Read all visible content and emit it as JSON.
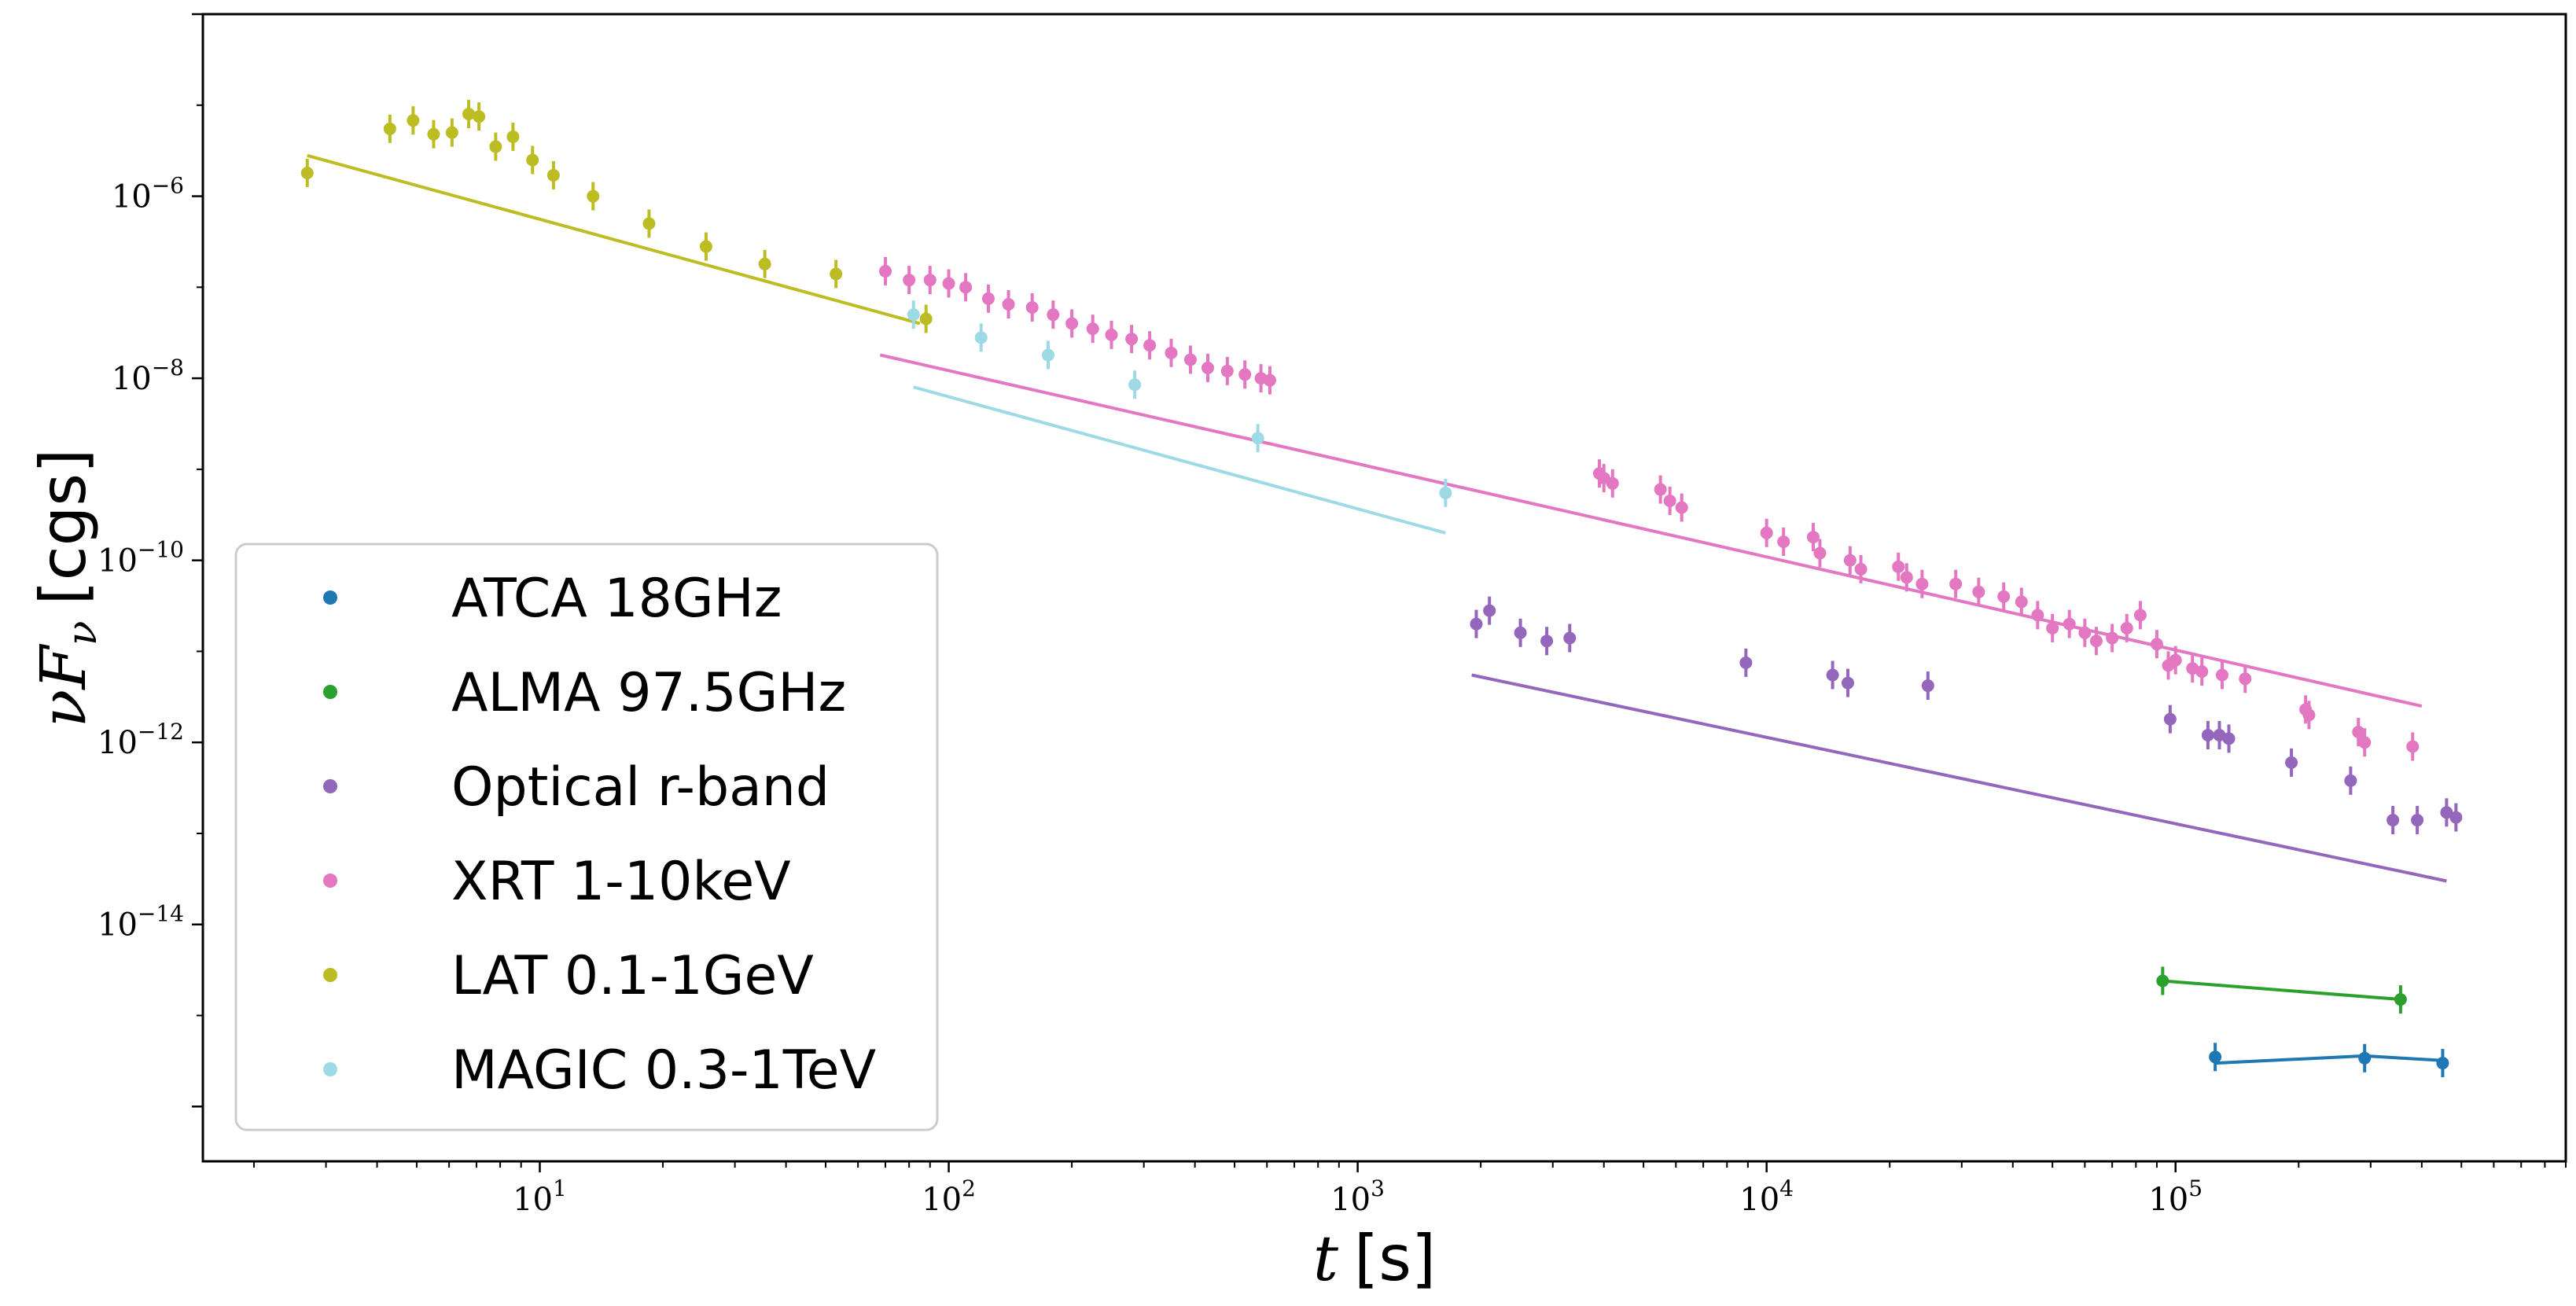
{
  "chart_data": {
    "type": "scatter",
    "title": "",
    "xlabel": "t [s]",
    "xlabel_var": "t",
    "xlabel_unit": "[s]",
    "ylabel": "νFν [cgs]",
    "ylabel_var": "νF",
    "ylabel_sub": "ν",
    "ylabel_unit": "[cgs]",
    "xscale": "log",
    "yscale": "log",
    "xlim": [
      1.5,
      900000
    ],
    "ylim": [
      2.5e-17,
      0.0001
    ],
    "grid": false,
    "legend_position": "lower-left",
    "x_ticks": [
      {
        "value": 10,
        "base": "10",
        "exp": "1"
      },
      {
        "value": 100,
        "base": "10",
        "exp": "2"
      },
      {
        "value": 1000,
        "base": "10",
        "exp": "3"
      },
      {
        "value": 10000,
        "base": "10",
        "exp": "4"
      },
      {
        "value": 100000,
        "base": "10",
        "exp": "5"
      }
    ],
    "y_ticks": [
      {
        "value": 1e-06,
        "base": "10",
        "exp": "−6"
      },
      {
        "value": 1e-08,
        "base": "10",
        "exp": "−8"
      },
      {
        "value": 1e-10,
        "base": "10",
        "exp": "−10"
      },
      {
        "value": 1e-12,
        "base": "10",
        "exp": "−12"
      },
      {
        "value": 1e-14,
        "base": "10",
        "exp": "−14"
      }
    ],
    "series": [
      {
        "name": "ATCA 18GHz",
        "color": "#1f77b4",
        "points": [
          {
            "x": 125000,
            "y": 3.5e-16
          },
          {
            "x": 290000,
            "y": 3.4e-16
          },
          {
            "x": 450000,
            "y": 3e-16
          }
        ],
        "model": [
          [
            125000,
            3e-16
          ],
          [
            290000,
            3.6e-16
          ],
          [
            450000,
            3.2e-16
          ]
        ]
      },
      {
        "name": "ALMA 97.5GHz",
        "color": "#2ca02c",
        "points": [
          {
            "x": 93000,
            "y": 2.4e-15
          },
          {
            "x": 355000,
            "y": 1.5e-15
          }
        ],
        "model": [
          [
            93000,
            2.4e-15
          ],
          [
            355000,
            1.5e-15
          ]
        ]
      },
      {
        "name": "Optical r-band",
        "color": "#9467bd",
        "points": [
          {
            "x": 1950,
            "y": 2e-11
          },
          {
            "x": 2100,
            "y": 2.8e-11
          },
          {
            "x": 2500,
            "y": 1.6e-11
          },
          {
            "x": 2900,
            "y": 1.3e-11
          },
          {
            "x": 3300,
            "y": 1.4e-11
          },
          {
            "x": 8900,
            "y": 7.5e-12
          },
          {
            "x": 14500,
            "y": 5.5e-12
          },
          {
            "x": 15800,
            "y": 4.5e-12
          },
          {
            "x": 24800,
            "y": 4.2e-12
          },
          {
            "x": 97000,
            "y": 1.8e-12
          },
          {
            "x": 120000,
            "y": 1.2e-12
          },
          {
            "x": 128000,
            "y": 1.2e-12
          },
          {
            "x": 135000,
            "y": 1.1e-12
          },
          {
            "x": 192000,
            "y": 6e-13
          },
          {
            "x": 268000,
            "y": 3.8e-13
          },
          {
            "x": 340000,
            "y": 1.4e-13
          },
          {
            "x": 390000,
            "y": 1.4e-13
          },
          {
            "x": 460000,
            "y": 1.7e-13
          },
          {
            "x": 485000,
            "y": 1.5e-13
          }
        ],
        "model": [
          [
            1900,
            5.5e-12
          ],
          [
            460000,
            3e-14
          ]
        ]
      },
      {
        "name": "XRT 1-10keV",
        "color": "#e377c2",
        "points": [
          {
            "x": 70,
            "y": 1.5e-07
          },
          {
            "x": 80,
            "y": 1.2e-07
          },
          {
            "x": 90,
            "y": 1.2e-07
          },
          {
            "x": 100,
            "y": 1.1e-07
          },
          {
            "x": 110,
            "y": 1e-07
          },
          {
            "x": 125,
            "y": 7.5e-08
          },
          {
            "x": 140,
            "y": 6.5e-08
          },
          {
            "x": 160,
            "y": 6e-08
          },
          {
            "x": 180,
            "y": 5e-08
          },
          {
            "x": 200,
            "y": 4e-08
          },
          {
            "x": 225,
            "y": 3.5e-08
          },
          {
            "x": 250,
            "y": 3e-08
          },
          {
            "x": 280,
            "y": 2.7e-08
          },
          {
            "x": 310,
            "y": 2.3e-08
          },
          {
            "x": 350,
            "y": 1.9e-08
          },
          {
            "x": 390,
            "y": 1.6e-08
          },
          {
            "x": 430,
            "y": 1.3e-08
          },
          {
            "x": 480,
            "y": 1.2e-08
          },
          {
            "x": 530,
            "y": 1.1e-08
          },
          {
            "x": 580,
            "y": 1e-08
          },
          {
            "x": 610,
            "y": 9.5e-09
          },
          {
            "x": 3900,
            "y": 9e-10
          },
          {
            "x": 4000,
            "y": 8e-10
          },
          {
            "x": 4200,
            "y": 7e-10
          },
          {
            "x": 5500,
            "y": 6e-10
          },
          {
            "x": 5800,
            "y": 4.5e-10
          },
          {
            "x": 6200,
            "y": 3.8e-10
          },
          {
            "x": 10000,
            "y": 2e-10
          },
          {
            "x": 11000,
            "y": 1.6e-10
          },
          {
            "x": 13000,
            "y": 1.8e-10
          },
          {
            "x": 13500,
            "y": 1.2e-10
          },
          {
            "x": 16000,
            "y": 1e-10
          },
          {
            "x": 17000,
            "y": 8e-11
          },
          {
            "x": 21000,
            "y": 8.5e-11
          },
          {
            "x": 22000,
            "y": 6.5e-11
          },
          {
            "x": 24000,
            "y": 5.5e-11
          },
          {
            "x": 29000,
            "y": 5.5e-11
          },
          {
            "x": 33000,
            "y": 4.5e-11
          },
          {
            "x": 38000,
            "y": 4e-11
          },
          {
            "x": 42000,
            "y": 3.5e-11
          },
          {
            "x": 46000,
            "y": 2.5e-11
          },
          {
            "x": 50000,
            "y": 1.8e-11
          },
          {
            "x": 55000,
            "y": 2e-11
          },
          {
            "x": 60000,
            "y": 1.6e-11
          },
          {
            "x": 64000,
            "y": 1.3e-11
          },
          {
            "x": 70000,
            "y": 1.4e-11
          },
          {
            "x": 76000,
            "y": 1.8e-11
          },
          {
            "x": 82000,
            "y": 2.5e-11
          },
          {
            "x": 90000,
            "y": 1.2e-11
          },
          {
            "x": 96000,
            "y": 7e-12
          },
          {
            "x": 100000,
            "y": 8e-12
          },
          {
            "x": 110000,
            "y": 6.5e-12
          },
          {
            "x": 116000,
            "y": 6e-12
          },
          {
            "x": 130000,
            "y": 5.5e-12
          },
          {
            "x": 148000,
            "y": 5e-12
          },
          {
            "x": 208000,
            "y": 2.3e-12
          },
          {
            "x": 212000,
            "y": 2e-12
          },
          {
            "x": 280000,
            "y": 1.3e-12
          },
          {
            "x": 290000,
            "y": 1e-12
          },
          {
            "x": 380000,
            "y": 9e-13
          }
        ],
        "model": [
          [
            68,
            1.8e-08
          ],
          [
            400000,
            2.5e-12
          ]
        ]
      },
      {
        "name": "LAT 0.1-1GeV",
        "color": "#bcbd22",
        "points": [
          {
            "x": 2.7,
            "y": 1.8e-06
          },
          {
            "x": 4.3,
            "y": 5.5e-06
          },
          {
            "x": 4.9,
            "y": 6.8e-06
          },
          {
            "x": 5.5,
            "y": 4.8e-06
          },
          {
            "x": 6.1,
            "y": 5e-06
          },
          {
            "x": 6.7,
            "y": 8e-06
          },
          {
            "x": 7.1,
            "y": 7.5e-06
          },
          {
            "x": 7.8,
            "y": 3.5e-06
          },
          {
            "x": 8.6,
            "y": 4.5e-06
          },
          {
            "x": 9.6,
            "y": 2.5e-06
          },
          {
            "x": 10.8,
            "y": 1.7e-06
          },
          {
            "x": 13.5,
            "y": 1e-06
          },
          {
            "x": 18.5,
            "y": 5e-07
          },
          {
            "x": 25.5,
            "y": 2.8e-07
          },
          {
            "x": 35.5,
            "y": 1.8e-07
          },
          {
            "x": 53,
            "y": 1.4e-07
          },
          {
            "x": 88,
            "y": 4.5e-08
          }
        ],
        "model": [
          [
            2.7,
            2.8e-06
          ],
          [
            85,
            4e-08
          ]
        ]
      },
      {
        "name": "MAGIC 0.3-1TeV",
        "color": "#9edae5",
        "points": [
          {
            "x": 82,
            "y": 5e-08
          },
          {
            "x": 120,
            "y": 2.8e-08
          },
          {
            "x": 175,
            "y": 1.8e-08
          },
          {
            "x": 285,
            "y": 8.5e-09
          },
          {
            "x": 570,
            "y": 2.2e-09
          },
          {
            "x": 1640,
            "y": 5.5e-10
          }
        ],
        "model": [
          [
            82,
            8e-09
          ],
          [
            1640,
            2e-10
          ]
        ]
      }
    ]
  }
}
